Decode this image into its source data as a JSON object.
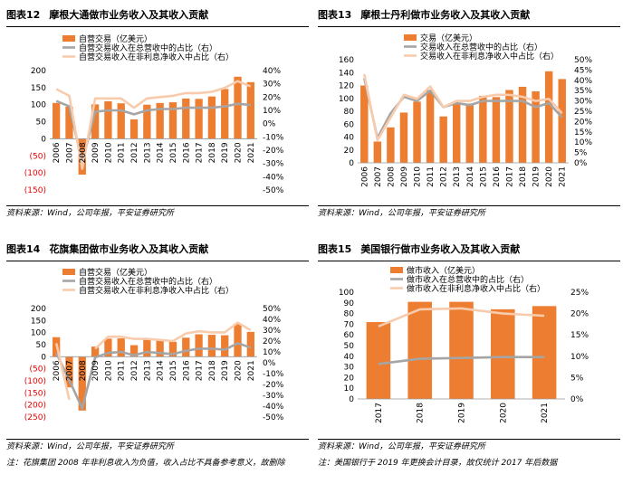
{
  "panels": [
    {
      "label": "图表12",
      "title": "摩根大通做市业务收入及其收入贡献",
      "source": "资料来源：Wind，公司年报，平安证券研究所",
      "note": "",
      "chart_data": {
        "type": "bar",
        "categories": [
          "2006",
          "2007",
          "2008",
          "2009",
          "2010",
          "2011",
          "2012",
          "2013",
          "2014",
          "2015",
          "2016",
          "2017",
          "2018",
          "2019",
          "2020",
          "2021"
        ],
        "series": [
          {
            "name": "自营交易（亿美元）",
            "type": "bar",
            "axis": "left",
            "color": "#ED7D31",
            "values": [
              105,
              94,
              -105,
              101,
              110,
              104,
              57,
              100,
              105,
              107,
              118,
              117,
              124,
              146,
              182,
              166
            ]
          },
          {
            "name": "自营交易收入在总营收中的占比（右）",
            "type": "line",
            "axis": "right",
            "color": "#A5A5A5",
            "values": [
              0.17,
              0.13,
              -0.29,
              0.09,
              0.1,
              0.1,
              0.07,
              0.1,
              0.11,
              0.11,
              0.12,
              0.12,
              0.12,
              0.13,
              0.15,
              0.14
            ]
          },
          {
            "name": "自营交易收入在非利息净收入中占比（右）",
            "type": "line",
            "axis": "right",
            "color": "#F8CBAD",
            "values": [
              0.26,
              0.21,
              -0.34,
              0.19,
              0.19,
              0.19,
              0.12,
              0.19,
              0.2,
              0.21,
              0.23,
              0.23,
              0.24,
              0.27,
              0.32,
              0.28
            ]
          }
        ],
        "left_axis": {
          "min": -150,
          "max": 200,
          "step": 50,
          "ticks": [
            "200",
            "150",
            "100",
            "50",
            "0",
            "(50)",
            "(100)",
            "(150)"
          ]
        },
        "right_axis": {
          "min": -0.5,
          "max": 0.4,
          "step": 0.1,
          "ticks": [
            "40%",
            "30%",
            "20%",
            "10%",
            "0%",
            "-10%",
            "-20%",
            "-30%",
            "-40%",
            "-50%"
          ]
        },
        "legend": "top-left"
      }
    },
    {
      "label": "图表13",
      "title": "摩根士丹利做市业务收入及其收入贡献",
      "source": "资料来源：Wind，公司年报，平安证券研究所",
      "note": "",
      "chart_data": {
        "type": "bar",
        "categories": [
          "2006",
          "2007",
          "2008",
          "2009",
          "2010",
          "2011",
          "2012",
          "2013",
          "2014",
          "2015",
          "2016",
          "2017",
          "2018",
          "2019",
          "2020",
          "2021"
        ],
        "series": [
          {
            "name": "交易（亿美元）",
            "type": "bar",
            "axis": "left",
            "color": "#ED7D31",
            "values": [
              120,
              33,
              55,
              78,
              95,
              113,
              72,
              92,
              92,
              104,
              102,
              113,
              118,
              111,
              142,
              130
            ]
          },
          {
            "name": "交易收入在总营收中的占比（右）",
            "type": "line",
            "axis": "right",
            "color": "#A5A5A5",
            "values": [
              0.41,
              0.12,
              0.24,
              0.32,
              0.3,
              0.35,
              0.27,
              0.29,
              0.28,
              0.3,
              0.3,
              0.3,
              0.3,
              0.27,
              0.29,
              0.22
            ]
          },
          {
            "name": "交易收入在非利息净收入中占比（右）",
            "type": "line",
            "axis": "right",
            "color": "#F8CBAD",
            "values": [
              0.43,
              0.11,
              0.22,
              0.33,
              0.31,
              0.37,
              0.27,
              0.3,
              0.3,
              0.32,
              0.33,
              0.33,
              0.32,
              0.3,
              0.31,
              0.24
            ]
          }
        ],
        "left_axis": {
          "min": 0,
          "max": 160,
          "step": 20,
          "ticks": [
            "160",
            "140",
            "120",
            "100",
            "80",
            "60",
            "40",
            "20",
            "0"
          ]
        },
        "right_axis": {
          "min": 0,
          "max": 0.5,
          "step": 0.05,
          "ticks": [
            "50%",
            "45%",
            "40%",
            "35%",
            "30%",
            "25%",
            "20%",
            "15%",
            "10%",
            "5%",
            "0%"
          ]
        },
        "legend": "top-left"
      }
    },
    {
      "label": "图表14",
      "title": "花旗集团做市业务收入及其收入贡献",
      "source": "资料来源：Wind，公司年报，平安证券研究所",
      "note": "注：花旗集团 2008 年非利息收入为负值，收入占比不具备参考意义，故删除",
      "chart_data": {
        "type": "bar",
        "categories": [
          "2006",
          "2007",
          "2008",
          "2009",
          "2010",
          "2011",
          "2012",
          "2013",
          "2014",
          "2015",
          "2016",
          "2017",
          "2018",
          "2019",
          "2020",
          "2021"
        ],
        "series": [
          {
            "name": "自营交易（亿美元）",
            "type": "bar",
            "axis": "left",
            "color": "#ED7D31",
            "values": [
              81,
              -127,
              -223,
              42,
              75,
              76,
              48,
              73,
              69,
              62,
              79,
              93,
              91,
              89,
              138,
              103
            ]
          },
          {
            "name": "自营交易收入在总营收中的占比（右）",
            "type": "line",
            "axis": "right",
            "color": "#A5A5A5",
            "values": [
              0.09,
              -0.16,
              -0.42,
              0.05,
              0.09,
              0.1,
              0.07,
              0.1,
              0.09,
              0.08,
              0.11,
              0.13,
              0.13,
              0.12,
              0.18,
              0.14
            ]
          },
          {
            "name": "自营交易收入在非利息净收入中占比（右）",
            "type": "line",
            "axis": "right",
            "color": "#F8CBAD",
            "values": [
              0.18,
              -0.34,
              null,
              0.13,
              0.24,
              0.24,
              0.22,
              0.22,
              0.21,
              0.2,
              0.27,
              0.29,
              0.28,
              0.28,
              0.37,
              0.3
            ]
          }
        ],
        "left_axis": {
          "min": -250,
          "max": 200,
          "step": 50,
          "ticks": [
            "200",
            "150",
            "100",
            "50",
            "0",
            "(50)",
            "(100)",
            "(150)",
            "(200)",
            "(250)"
          ]
        },
        "right_axis": {
          "min": -0.5,
          "max": 0.5,
          "step": 0.1,
          "ticks": [
            "50%",
            "40%",
            "30%",
            "20%",
            "10%",
            "0%",
            "-10%",
            "-20%",
            "-30%",
            "-40%",
            "-50%"
          ]
        },
        "legend": "top-left"
      }
    },
    {
      "label": "图表15",
      "title": "美国银行做市业务收入及其收入贡献",
      "source": "资料来源：Wind，公司年报，平安证券研究所",
      "note": "注：美国银行于 2019 年更换会计目录，故仅统计 2017 年后数据",
      "chart_data": {
        "type": "bar",
        "categories": [
          "2017",
          "2018",
          "2019",
          "2020",
          "2021"
        ],
        "series": [
          {
            "name": "做市收入（亿美元）",
            "type": "bar",
            "axis": "left",
            "color": "#ED7D31",
            "values": [
              72,
              91,
              91,
              84,
              87
            ]
          },
          {
            "name": "做市收入在总营收中的占比（右）",
            "type": "line",
            "axis": "right",
            "color": "#A5A5A5",
            "values": [
              0.082,
              0.094,
              0.096,
              0.098,
              0.098
            ]
          },
          {
            "name": "做市收入在非利息净收入中占比（右）",
            "type": "line",
            "axis": "right",
            "color": "#F8CBAD",
            "values": [
              0.17,
              0.21,
              0.212,
              0.2,
              0.195
            ]
          }
        ],
        "left_axis": {
          "min": 0,
          "max": 100,
          "step": 10,
          "ticks": [
            "100",
            "90",
            "80",
            "70",
            "60",
            "50",
            "40",
            "30",
            "20",
            "10",
            "0"
          ]
        },
        "right_axis": {
          "min": 0,
          "max": 0.25,
          "step": 0.05,
          "ticks": [
            "25%",
            "20%",
            "15%",
            "10%",
            "5%",
            "0%"
          ]
        },
        "legend": "top-left"
      }
    }
  ]
}
